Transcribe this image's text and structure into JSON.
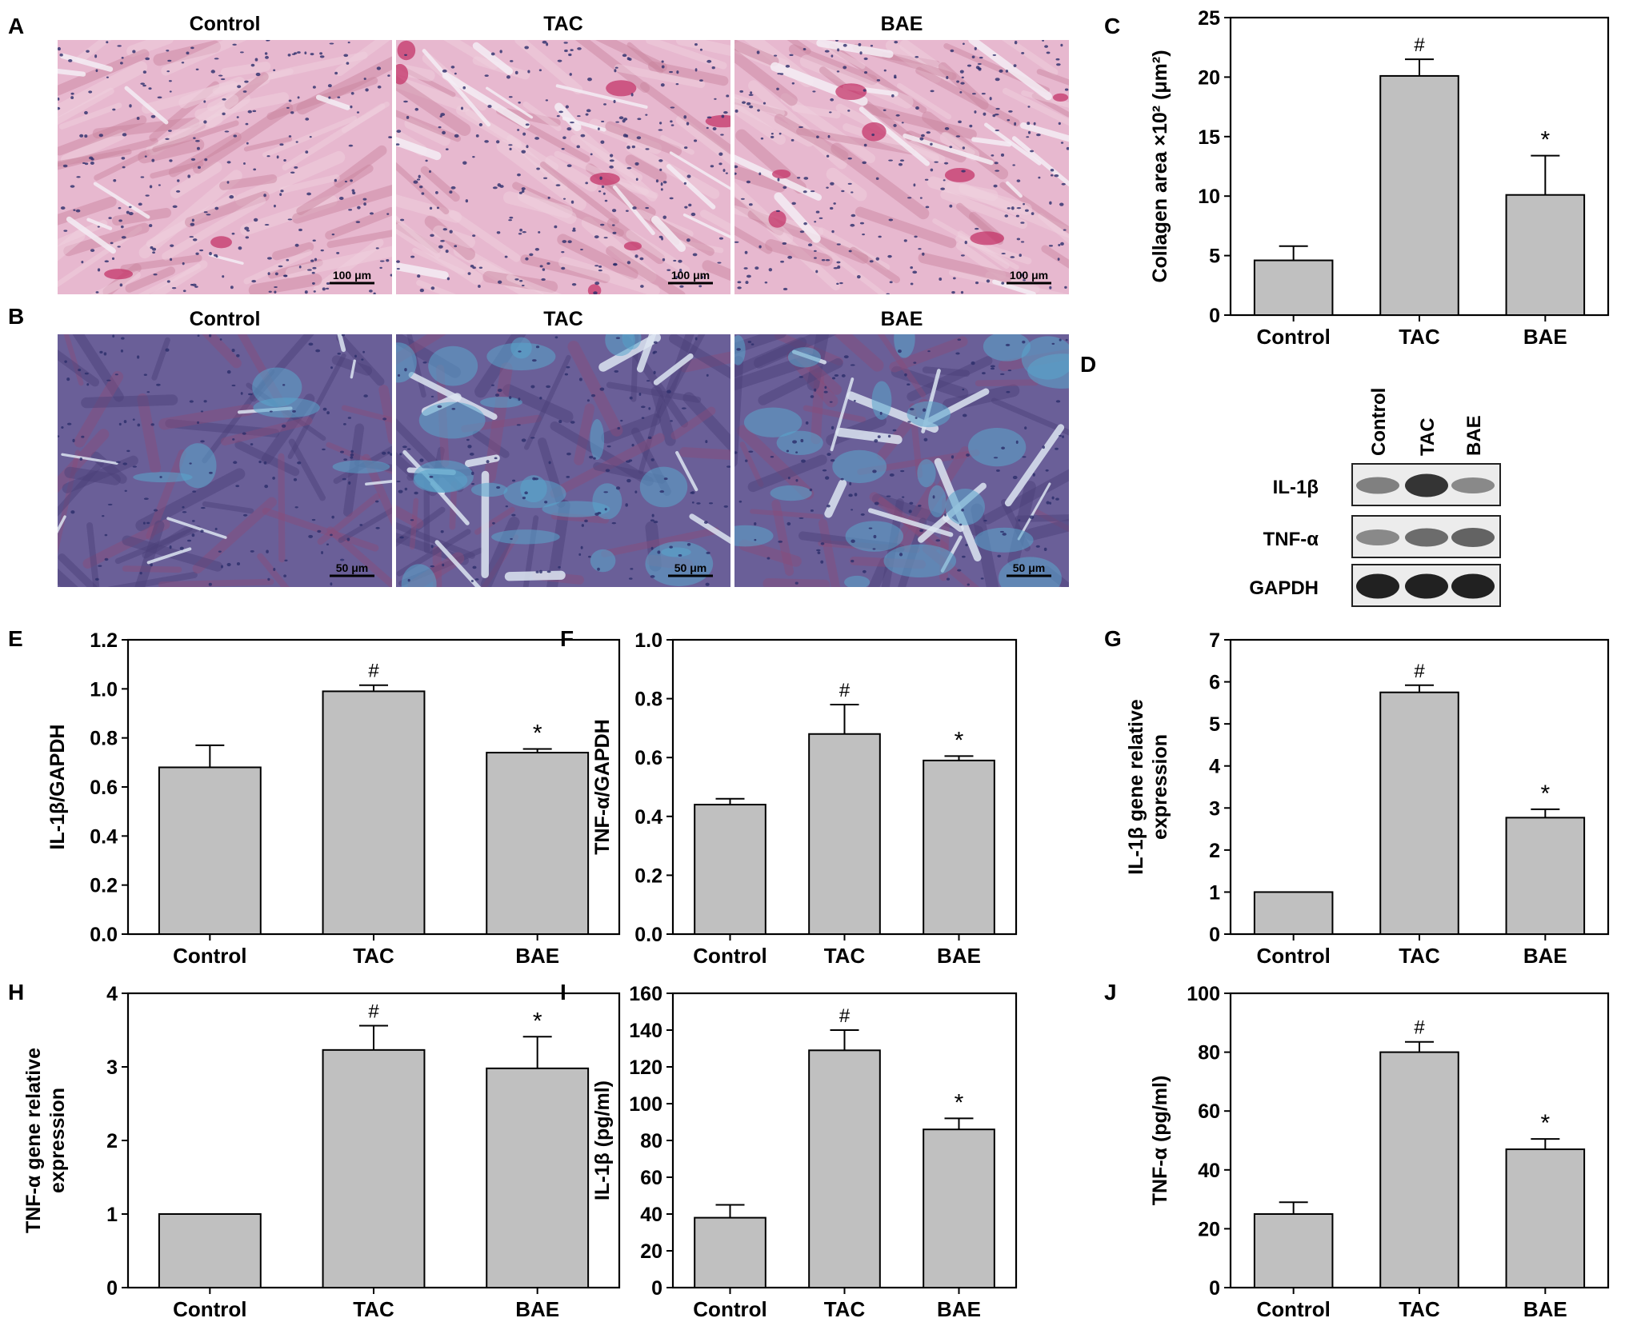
{
  "panel_letters": [
    "A",
    "B",
    "C",
    "D",
    "E",
    "F",
    "G",
    "H",
    "I",
    "J"
  ],
  "micrographs": {
    "columns": [
      "Control",
      "TAC",
      "BAE"
    ],
    "row_a_scale_bar": "100 μm",
    "row_b_scale_bar": "50 μm",
    "colors": {
      "he_base": "#e7b8cf",
      "he_dark": "#c9839d",
      "he_accent": "#c4366a",
      "he_nuclei": "#2a2d6a",
      "he_gap": "#f5eef5",
      "masson_base": "#6a5f98",
      "masson_dark": "#4b4079",
      "masson_red": "#8a4d7a",
      "masson_blue": "#5aa6cc",
      "masson_gap": "#dde6f2"
    }
  },
  "western_blot": {
    "lanes": [
      "Control",
      "TAC",
      "BAE"
    ],
    "rows": [
      {
        "label": "IL-1β",
        "intensity": [
          0.45,
          0.85,
          0.4
        ]
      },
      {
        "label": "TNF-α",
        "intensity": [
          0.4,
          0.55,
          0.6
        ]
      },
      {
        "label": "GAPDH",
        "intensity": [
          0.95,
          0.95,
          0.95
        ]
      }
    ]
  },
  "chart_data": [
    {
      "id": "C",
      "type": "bar",
      "categories": [
        "Control",
        "TAC",
        "BAE"
      ],
      "values": [
        4.6,
        20.1,
        10.1
      ],
      "errors": [
        1.2,
        1.4,
        3.3
      ],
      "marks": [
        "",
        "#",
        "*"
      ],
      "ylabel": "Collagen area ×10² (μm²)",
      "ylim": [
        0,
        25
      ],
      "yticks": [
        "0",
        "5",
        "10",
        "15",
        "20",
        "25"
      ]
    },
    {
      "id": "E",
      "type": "bar",
      "categories": [
        "Control",
        "TAC",
        "BAE"
      ],
      "values": [
        0.68,
        0.99,
        0.74
      ],
      "errors": [
        0.09,
        0.025,
        0.015
      ],
      "marks": [
        "",
        "#",
        "*"
      ],
      "ylabel": "IL-1β/GAPDH",
      "ylim": [
        0,
        1.2
      ],
      "yticks": [
        "0.0",
        "0.2",
        "0.4",
        "0.6",
        "0.8",
        "1.0",
        "1.2"
      ]
    },
    {
      "id": "F",
      "type": "bar",
      "categories": [
        "Control",
        "TAC",
        "BAE"
      ],
      "values": [
        0.44,
        0.68,
        0.59
      ],
      "errors": [
        0.02,
        0.1,
        0.015
      ],
      "marks": [
        "",
        "#",
        "*"
      ],
      "ylabel": "TNF-α/GAPDH",
      "ylim": [
        0,
        1.0
      ],
      "yticks": [
        "0.0",
        "0.2",
        "0.4",
        "0.6",
        "0.8",
        "1.0"
      ]
    },
    {
      "id": "G",
      "type": "bar",
      "categories": [
        "Control",
        "TAC",
        "BAE"
      ],
      "values": [
        1.0,
        5.75,
        2.77
      ],
      "errors": [
        0,
        0.17,
        0.2
      ],
      "marks": [
        "",
        "#",
        "*"
      ],
      "ylabel": "IL-1β gene relative expression",
      "ylim": [
        0,
        7
      ],
      "yticks": [
        "0",
        "1",
        "2",
        "3",
        "4",
        "5",
        "6",
        "7"
      ]
    },
    {
      "id": "H",
      "type": "bar",
      "categories": [
        "Control",
        "TAC",
        "BAE"
      ],
      "values": [
        1.0,
        3.23,
        2.98
      ],
      "errors": [
        0,
        0.33,
        0.43
      ],
      "marks": [
        "",
        "#",
        "*"
      ],
      "ylabel": "TNF-α gene relative expression",
      "ylim": [
        0,
        4
      ],
      "yticks": [
        "0",
        "1",
        "2",
        "3",
        "4"
      ]
    },
    {
      "id": "I",
      "type": "bar",
      "categories": [
        "Control",
        "TAC",
        "BAE"
      ],
      "values": [
        38,
        129,
        86
      ],
      "errors": [
        7,
        11,
        6
      ],
      "marks": [
        "",
        "#",
        "*"
      ],
      "ylabel": "IL-1β (pg/ml)",
      "ylim": [
        0,
        160
      ],
      "yticks": [
        "0",
        "20",
        "40",
        "60",
        "80",
        "100",
        "120",
        "140",
        "160"
      ]
    },
    {
      "id": "J",
      "type": "bar",
      "categories": [
        "Control",
        "TAC",
        "BAE"
      ],
      "values": [
        25,
        80,
        47
      ],
      "errors": [
        4,
        3.5,
        3.5
      ],
      "marks": [
        "",
        "#",
        "*"
      ],
      "ylabel": "TNF-α (pg/ml)",
      "ylim": [
        0,
        100
      ],
      "yticks": [
        "0",
        "20",
        "40",
        "60",
        "80",
        "100"
      ]
    }
  ]
}
